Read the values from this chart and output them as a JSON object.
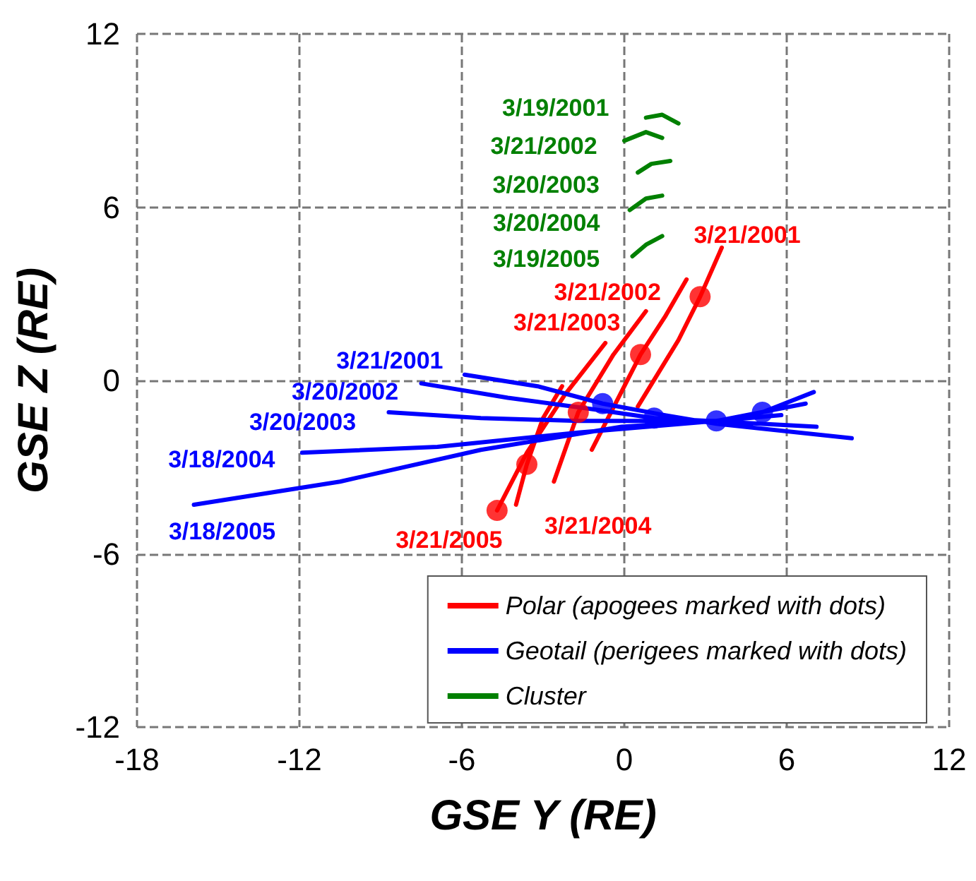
{
  "chart_data": {
    "type": "line",
    "xlabel": "GSE Y (RE)",
    "ylabel": "GSE Z (RE)",
    "xlim": [
      -18,
      12
    ],
    "xticks": [
      -18,
      -12,
      -6,
      0,
      6,
      12
    ],
    "ylim": [
      -12,
      12
    ],
    "yticks": [
      -12,
      -6,
      0,
      6,
      12
    ],
    "grid": true,
    "legend": "bottom right",
    "marker": "none",
    "line_style": "solid",
    "series": [
      {
        "name": "Polar (apogees marked with dots)",
        "color": "#ff0000",
        "x": [
          3.6,
          2.8,
          2.0,
          0.5,
          null,
          2.3,
          1.5,
          0.6,
          -1.2,
          null,
          0.8,
          -0.4,
          -1.7,
          -2.6,
          null,
          -2.3,
          -3.0,
          -3.6,
          -4.0,
          null,
          -0.7,
          -2.2,
          -3.6,
          -4.7
        ],
        "values": [
          4.6,
          2.9,
          1.4,
          -0.9,
          null,
          3.5,
          2.2,
          0.9,
          -2.4,
          null,
          2.4,
          0.9,
          -1.1,
          -3.5,
          null,
          -0.2,
          -1.3,
          -2.9,
          -4.3,
          null,
          1.3,
          -0.5,
          -2.5,
          -4.5
        ]
      },
      {
        "name": "Geotail (perigees marked with dots)",
        "color": "#0000ff",
        "x": [
          -5.9,
          -3.2,
          -0.8,
          1.5,
          3.4,
          8.4,
          null,
          -7.5,
          -4.3,
          -1.1,
          1.1,
          7.1,
          null,
          -8.7,
          -5.3,
          -1.7,
          3.4,
          5.8,
          null,
          -11.9,
          -6.9,
          -1.7,
          3.4,
          5.1,
          7.0,
          null,
          -15.9,
          -10.5,
          -5.3,
          -0.1,
          3.4,
          6.7
        ],
        "values": [
          0.2,
          -0.2,
          -0.8,
          -1.2,
          -1.5,
          -2.0,
          null,
          -0.1,
          -0.6,
          -1.0,
          -1.3,
          -1.6,
          null,
          -1.1,
          -1.3,
          -1.4,
          -1.4,
          -1.2,
          null,
          -2.5,
          -2.3,
          -1.8,
          -1.4,
          -1.1,
          -0.4,
          null,
          -4.3,
          -3.5,
          -2.4,
          -1.6,
          -1.4,
          -0.8
        ]
      },
      {
        "name": "Cluster",
        "color": "#008000",
        "x": [
          0.8,
          1.4,
          2.0,
          null,
          0.0,
          0.8,
          1.4,
          null,
          0.5,
          1.0,
          1.7,
          null,
          0.2,
          0.8,
          1.4,
          null,
          0.3,
          0.8,
          1.4
        ],
        "values": [
          9.1,
          9.2,
          8.9,
          null,
          8.3,
          8.6,
          8.4,
          null,
          7.2,
          7.5,
          7.6,
          null,
          5.9,
          6.3,
          6.4,
          null,
          4.3,
          4.7,
          5.0
        ]
      },
      {
        "type": "scatter",
        "marker": "circle",
        "color": "#ff0000",
        "x": [
          2.8,
          0.6,
          -1.7,
          -3.6,
          -4.7
        ],
        "values": [
          2.9,
          0.9,
          -1.1,
          -2.9,
          -4.5
        ]
      },
      {
        "type": "scatter",
        "marker": "circle",
        "color": "#0000ff",
        "x": [
          -0.8,
          1.1,
          3.4,
          5.1
        ],
        "values": [
          -0.8,
          -1.3,
          -1.4,
          -1.1
        ]
      }
    ],
    "annotations": [
      {
        "text": "3/19/2001",
        "x": 0.8,
        "y": 9.1
      },
      {
        "text": "3/21/2002",
        "x": 0.0,
        "y": 8.3
      },
      {
        "text": "3/20/2003",
        "x": 0.5,
        "y": 7.2
      },
      {
        "text": "3/20/2004",
        "x": 0.2,
        "y": 5.9
      },
      {
        "text": "3/19/2005",
        "x": 0.3,
        "y": 4.3
      },
      {
        "text": "3/21/2001",
        "x": 3.6,
        "y": 4.6
      },
      {
        "text": "3/21/2002",
        "x": 2.3,
        "y": 3.5
      },
      {
        "text": "3/21/2003",
        "x": 0.8,
        "y": 2.4
      },
      {
        "text": "3/21/2004",
        "x": -4.0,
        "y": -4.3
      },
      {
        "text": "3/21/2005",
        "x": -4.7,
        "y": -4.5
      },
      {
        "text": "3/21/2001",
        "x": -5.9,
        "y": 0.2
      },
      {
        "text": "3/20/2002",
        "x": -7.5,
        "y": -0.1
      },
      {
        "text": "3/20/2003",
        "x": -8.7,
        "y": -1.1
      },
      {
        "text": "3/18/2004",
        "x": -11.9,
        "y": -2.5
      },
      {
        "text": "3/18/2005",
        "x": -15.9,
        "y": -4.3
      }
    ]
  }
}
